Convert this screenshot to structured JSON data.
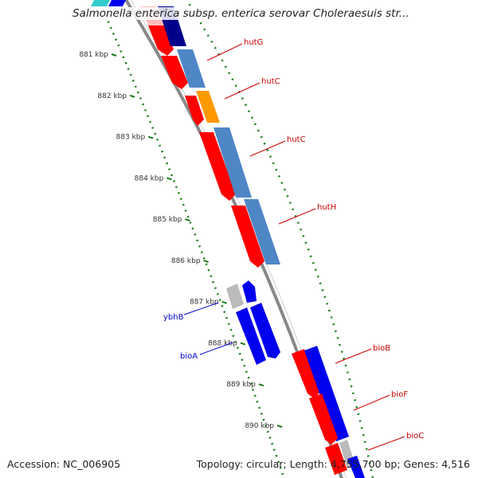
{
  "title": "Salmonella enterica subsp. enterica serovar Choleraesuis str...",
  "footer": {
    "accession": "Accession: NC_006905",
    "summary": "Topology: circular; Length: 4,755,700 bp; Genes: 4,516"
  },
  "ticks": [
    {
      "label": "881 kbp",
      "pos": 881
    },
    {
      "label": "882 kbp",
      "pos": 882
    },
    {
      "label": "883 kbp",
      "pos": 883
    },
    {
      "label": "884 kbp",
      "pos": 884
    },
    {
      "label": "885 kbp",
      "pos": 885
    },
    {
      "label": "886 kbp",
      "pos": 886
    },
    {
      "label": "887 kbp",
      "pos": 887
    },
    {
      "label": "888 kbp",
      "pos": 888
    },
    {
      "label": "889 kbp",
      "pos": 889
    },
    {
      "label": "890 kbp",
      "pos": 890
    }
  ],
  "gene_labels": [
    {
      "name": "hutG",
      "color": "#cc0000"
    },
    {
      "name": "hutC",
      "color": "#cc0000"
    },
    {
      "name": "hutC",
      "color": "#cc0000"
    },
    {
      "name": "hutH",
      "color": "#cc0000"
    },
    {
      "name": "ybhB",
      "color": "#0000cc"
    },
    {
      "name": "bioA",
      "color": "#0000cc"
    },
    {
      "name": "bioB",
      "color": "#cc0000"
    },
    {
      "name": "bioF",
      "color": "#cc0000"
    },
    {
      "name": "bioC",
      "color": "#cc0000"
    }
  ],
  "colors": {
    "forward_gene": "#ff0000",
    "reverse_gene": "#0000ee",
    "forward_cds": "#4f86c6",
    "reverse_cds": "#0000cc",
    "rna": "#ff9900",
    "other": "#bbbbbb",
    "backbone": "#888888",
    "gc_ticks": "#1a7a1a"
  }
}
